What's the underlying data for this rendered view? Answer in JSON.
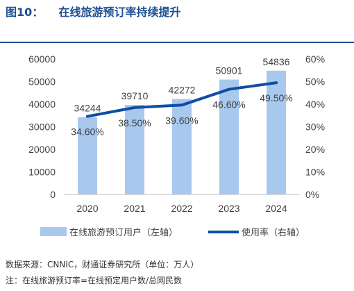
{
  "header": {
    "title": "图10：    在线旅游预订率持续提升"
  },
  "notes": {
    "source": "数据来源：CNNIC，财通证券研究所（单位：万人）",
    "footnote": "注：在线旅游预订率=在线预定用户数/总网民数"
  },
  "colors": {
    "bar": "#a8c8ee",
    "line": "#0d4ea3",
    "title": "#1d4f91",
    "axis": "#bfbfbf",
    "text": "#404040"
  },
  "chart_data": {
    "type": "bar",
    "categories": [
      "2020",
      "2021",
      "2022",
      "2023",
      "2024"
    ],
    "series": [
      {
        "name": "在线旅游预订用户（左轴）",
        "type": "bar",
        "axis": "left",
        "values": [
          34244,
          39710,
          42272,
          50901,
          54836
        ]
      },
      {
        "name": "使用率（右轴）",
        "type": "line",
        "axis": "right",
        "values": [
          34.6,
          38.5,
          39.6,
          46.6,
          49.5
        ]
      }
    ],
    "bar_labels": [
      "34244",
      "39710",
      "42272",
      "50901",
      "54836"
    ],
    "line_labels": [
      "34.60%",
      "38.50%",
      "39.60%",
      "46.60%",
      "49.50%"
    ],
    "y_left": {
      "lim": [
        0,
        60000
      ],
      "ticks": [
        "0",
        "10000",
        "20000",
        "30000",
        "40000",
        "50000",
        "60000"
      ]
    },
    "y_right": {
      "lim": [
        0,
        60
      ],
      "ticks": [
        "0%",
        "10%",
        "20%",
        "30%",
        "40%",
        "50%",
        "60%"
      ]
    },
    "grid": false,
    "legend_position": "bottom"
  }
}
